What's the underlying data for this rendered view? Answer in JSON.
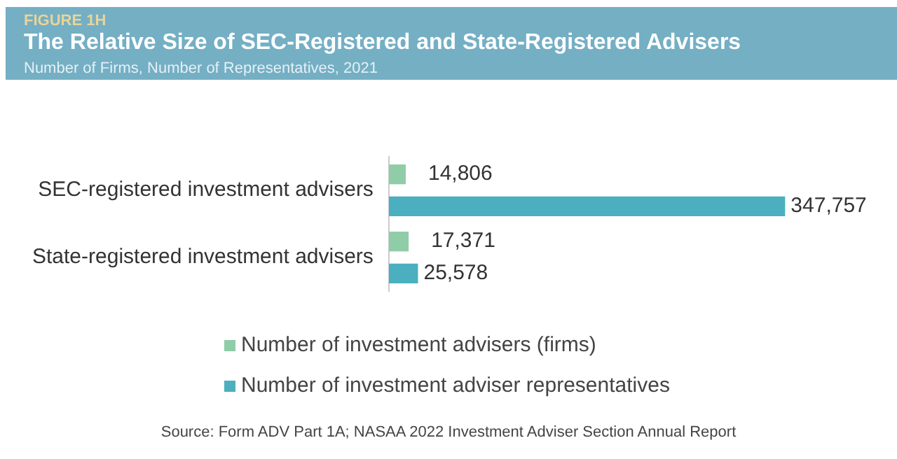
{
  "chart_data": {
    "type": "bar",
    "orientation": "horizontal",
    "title": "The Relative Size of SEC-Registered and State-Registered Advisers",
    "subtitle": "Number of Firms, Number of Representatives, 2021",
    "annotations": [
      "FIGURE 1H",
      "Source: Form ADV Part 1A; NASAA 2022 Investment Adviser Section Annual Report"
    ],
    "categories": [
      "SEC-registered investment advisers",
      "State-registered investment advisers"
    ],
    "series": [
      {
        "name": "Number of investment advisers (firms)",
        "color": "#8fcca8",
        "values": [
          14806,
          17371
        ],
        "value_labels": [
          "14,806",
          "17,371"
        ]
      },
      {
        "name": "Number of investment adviser representatives",
        "color": "#4bafbf",
        "values": [
          347757,
          25578
        ],
        "value_labels": [
          "347,757",
          "25,578"
        ]
      }
    ],
    "tick_labels": "y",
    "legend": "bottom"
  }
}
